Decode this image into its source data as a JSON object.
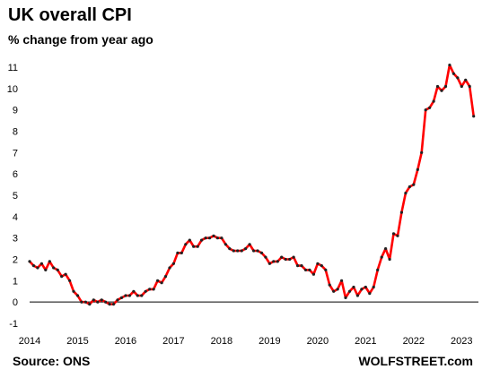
{
  "title": "UK overall CPI",
  "subtitle": "% change from year ago",
  "source": "Source: ONS",
  "brand": "WOLFSTREET.com",
  "colors": {
    "line": "#ff0000",
    "marker": "#222222",
    "axis": "#000000"
  },
  "chart_data": {
    "type": "line",
    "title": "UK overall CPI",
    "ylabel": "% change from year ago",
    "xlabel": "",
    "ylim": [
      -1,
      11
    ],
    "xlim": [
      2014,
      2023.35
    ],
    "yticks": [
      "-1",
      "0",
      "1",
      "2",
      "3",
      "4",
      "5",
      "6",
      "7",
      "8",
      "9",
      "10",
      "11"
    ],
    "xticks": [
      "2014",
      "2015",
      "2016",
      "2017",
      "2018",
      "2019",
      "2020",
      "2021",
      "2022",
      "2023"
    ],
    "grid": false,
    "legend": "none",
    "series": [
      {
        "values": [
          1.9,
          1.7,
          1.6,
          1.8,
          1.5,
          1.9,
          1.6,
          1.5,
          1.2,
          1.3,
          1.0,
          0.5,
          0.3,
          0.0,
          0.0,
          -0.1,
          0.1,
          0.0,
          0.1,
          0.0,
          -0.1,
          -0.1,
          0.1,
          0.2,
          0.3,
          0.3,
          0.5,
          0.3,
          0.3,
          0.5,
          0.6,
          0.6,
          1.0,
          0.9,
          1.2,
          1.6,
          1.8,
          2.3,
          2.3,
          2.7,
          2.9,
          2.6,
          2.6,
          2.9,
          3.0,
          3.0,
          3.1,
          3.0,
          3.0,
          2.7,
          2.5,
          2.4,
          2.4,
          2.4,
          2.5,
          2.7,
          2.4,
          2.4,
          2.3,
          2.1,
          1.8,
          1.9,
          1.9,
          2.1,
          2.0,
          2.0,
          2.1,
          1.7,
          1.7,
          1.5,
          1.5,
          1.3,
          1.8,
          1.7,
          1.5,
          0.8,
          0.5,
          0.6,
          1.0,
          0.2,
          0.5,
          0.7,
          0.3,
          0.6,
          0.7,
          0.4,
          0.7,
          1.5,
          2.1,
          2.5,
          2.0,
          3.2,
          3.1,
          4.2,
          5.1,
          5.4,
          5.5,
          6.2,
          7.0,
          9.0,
          9.1,
          9.4,
          10.1,
          9.9,
          10.1,
          11.1,
          10.7,
          10.5,
          10.1,
          10.4,
          10.1,
          8.7
        ]
      }
    ]
  }
}
